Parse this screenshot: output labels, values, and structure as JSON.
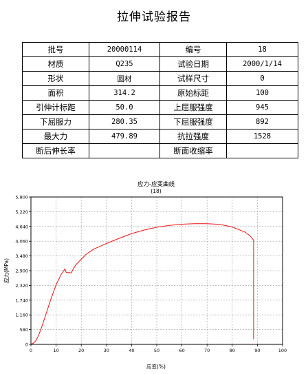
{
  "report": {
    "title": "拉伸试验报告",
    "rows": [
      [
        {
          "label": "批号",
          "value": "20000114"
        },
        {
          "label": "编号",
          "value": "18"
        }
      ],
      [
        {
          "label": "材质",
          "value": "Q235"
        },
        {
          "label": "试验日期",
          "value": "2000/1/14"
        }
      ],
      [
        {
          "label": "形状",
          "value": "圆材"
        },
        {
          "label": "试样尺寸",
          "value": "0"
        }
      ],
      [
        {
          "label": "面积",
          "value": "314.2"
        },
        {
          "label": "原始标距",
          "value": "100"
        }
      ],
      [
        {
          "label": "引伸计标距",
          "value": "50.0"
        },
        {
          "label": "上屈服强度",
          "value": "945"
        }
      ],
      [
        {
          "label": "下屈服力",
          "value": "280.35"
        },
        {
          "label": "下屈服强度",
          "value": "892"
        }
      ],
      [
        {
          "label": "最大力",
          "value": "479.89"
        },
        {
          "label": "抗拉强度",
          "value": "1528"
        }
      ],
      [
        {
          "label": "断后伸长率",
          "value": ""
        },
        {
          "label": "断面收缩率",
          "value": ""
        }
      ]
    ]
  },
  "chart_data": {
    "type": "line",
    "title": "应力-应变曲线",
    "subtitle": "(18)",
    "xlabel": "应变(%)",
    "ylabel": "应力(MPa)",
    "xlim": [
      0,
      100
    ],
    "ylim": [
      0,
      5800
    ],
    "x_ticks": [
      0,
      10,
      20,
      30,
      40,
      50,
      60,
      70,
      80,
      90,
      100
    ],
    "y_ticks": [
      0,
      580,
      1160,
      1740,
      2320,
      2900,
      3480,
      4060,
      4640,
      5220,
      5800
    ],
    "y_tick_labels": [
      "0",
      "580",
      "1,160",
      "1,740",
      "2,320",
      "2,900",
      "3,480",
      "4,060",
      "4,640",
      "5,220",
      "5,800"
    ],
    "grid": true,
    "line_color": "#ee1111",
    "series": [
      {
        "x": [
          0,
          1,
          2,
          3,
          4,
          5,
          6,
          8,
          10,
          12,
          13.5,
          14,
          14.5,
          15,
          16,
          17,
          18,
          20,
          22,
          25,
          28,
          30,
          35,
          40,
          45,
          50,
          55,
          60,
          65,
          70,
          75,
          80,
          85,
          87,
          88.5,
          88.5
        ],
        "y": [
          0,
          50,
          150,
          350,
          600,
          900,
          1200,
          1800,
          2350,
          2750,
          2970,
          2840,
          2820,
          2830,
          2810,
          3000,
          3150,
          3350,
          3550,
          3750,
          3880,
          3970,
          4170,
          4360,
          4500,
          4610,
          4680,
          4730,
          4750,
          4750,
          4720,
          4620,
          4420,
          4280,
          4100,
          200
        ]
      }
    ]
  }
}
